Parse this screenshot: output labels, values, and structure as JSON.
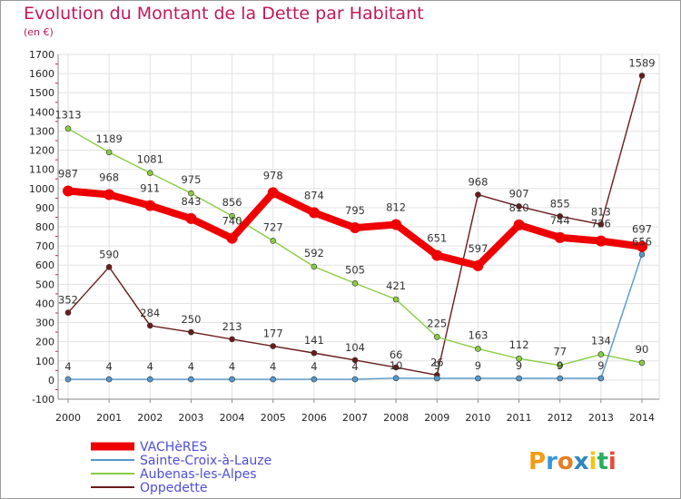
{
  "header": {
    "title": "Evolution du Montant de la Dette par Habitant",
    "unit": "(en €)"
  },
  "logo": {
    "text": "Proxiti"
  },
  "colors": {
    "VACHèRES": "#ee0000",
    "Sainte-Croix-à-Lauze": "#5599cc",
    "Aubenas-les-Alpes": "#88cc44",
    "Oppedette": "#6a1b1b"
  },
  "chart_data": {
    "type": "line",
    "title": "Evolution du Montant de la Dette par Habitant",
    "ylabel": "(en €)",
    "xlabel": "",
    "x": [
      "2000",
      "2001",
      "2002",
      "2003",
      "2004",
      "2005",
      "2006",
      "2007",
      "2008",
      "2009",
      "2010",
      "2011",
      "2012",
      "2013",
      "2014"
    ],
    "ylim": [
      -100,
      1700
    ],
    "yticks": [
      -100,
      0,
      100,
      200,
      300,
      400,
      500,
      600,
      700,
      800,
      900,
      1000,
      1100,
      1200,
      1300,
      1400,
      1500,
      1600,
      1700
    ],
    "grid": true,
    "legend_position": "bottom-left",
    "series": [
      {
        "name": "VACHèRES",
        "values": [
          987,
          968,
          911,
          843,
          740,
          978,
          874,
          795,
          812,
          651,
          597,
          810,
          744,
          726,
          697
        ],
        "labels": [
          "987",
          "968",
          "911",
          "843",
          "740",
          "978",
          "874",
          "795",
          "812",
          "651",
          "597",
          "810",
          "744",
          "726",
          "697"
        ]
      },
      {
        "name": "Sainte-Croix-à-Lauze",
        "values": [
          4,
          4,
          4,
          4,
          4,
          4,
          4,
          4,
          10,
          9,
          9,
          9,
          9,
          9,
          656
        ],
        "labels": [
          "4",
          "4",
          "4",
          "4",
          "4",
          "4",
          "4",
          "4",
          "10",
          "9",
          "9",
          "9",
          "9",
          "9",
          "656"
        ]
      },
      {
        "name": "Aubenas-les-Alpes",
        "values": [
          1313,
          1189,
          1081,
          975,
          856,
          727,
          592,
          505,
          421,
          225,
          163,
          112,
          77,
          134,
          90
        ],
        "labels": [
          "1313",
          "1189",
          "1081",
          "975",
          "856",
          "727",
          "592",
          "505",
          "421",
          "225",
          "163",
          "112",
          "77",
          "134",
          "90"
        ]
      },
      {
        "name": "Oppedette",
        "values": [
          352,
          590,
          284,
          250,
          213,
          177,
          141,
          104,
          66,
          26,
          968,
          907,
          855,
          813,
          1589
        ],
        "labels": [
          "352",
          "590",
          "284",
          "250",
          "213",
          "177",
          "141",
          "104",
          "66",
          "26",
          "968",
          "907",
          "855",
          "813",
          "1589"
        ]
      }
    ]
  }
}
